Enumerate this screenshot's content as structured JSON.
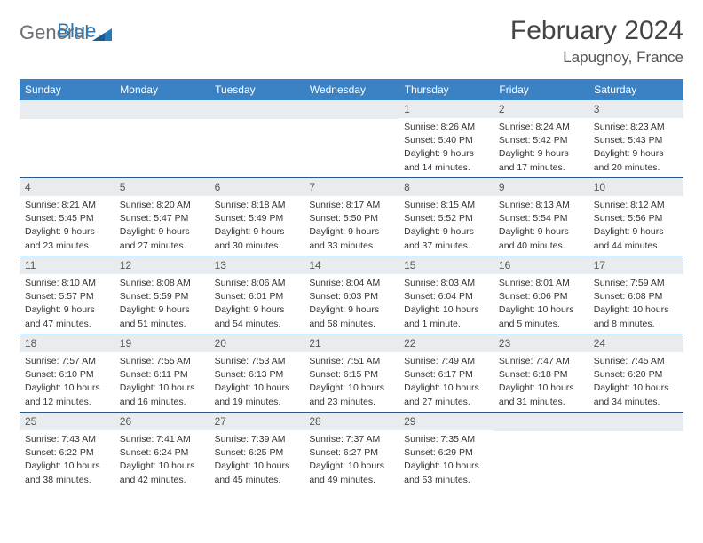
{
  "logo": {
    "text1": "General",
    "text2": "Blue"
  },
  "header": {
    "title": "February 2024",
    "location": "Lapugnoy, France"
  },
  "colors": {
    "header_bg": "#3b82c4",
    "header_text": "#ffffff",
    "daynum_bg": "#e9ecef",
    "row_border": "#2a5a8a",
    "logo_gray": "#6b6f73",
    "logo_blue": "#2a7ab8"
  },
  "weekdays": [
    "Sunday",
    "Monday",
    "Tuesday",
    "Wednesday",
    "Thursday",
    "Friday",
    "Saturday"
  ],
  "weeks": [
    [
      null,
      null,
      null,
      null,
      {
        "day": "1",
        "sunrise": "8:26 AM",
        "sunset": "5:40 PM",
        "daylight": "9 hours and 14 minutes."
      },
      {
        "day": "2",
        "sunrise": "8:24 AM",
        "sunset": "5:42 PM",
        "daylight": "9 hours and 17 minutes."
      },
      {
        "day": "3",
        "sunrise": "8:23 AM",
        "sunset": "5:43 PM",
        "daylight": "9 hours and 20 minutes."
      }
    ],
    [
      {
        "day": "4",
        "sunrise": "8:21 AM",
        "sunset": "5:45 PM",
        "daylight": "9 hours and 23 minutes."
      },
      {
        "day": "5",
        "sunrise": "8:20 AM",
        "sunset": "5:47 PM",
        "daylight": "9 hours and 27 minutes."
      },
      {
        "day": "6",
        "sunrise": "8:18 AM",
        "sunset": "5:49 PM",
        "daylight": "9 hours and 30 minutes."
      },
      {
        "day": "7",
        "sunrise": "8:17 AM",
        "sunset": "5:50 PM",
        "daylight": "9 hours and 33 minutes."
      },
      {
        "day": "8",
        "sunrise": "8:15 AM",
        "sunset": "5:52 PM",
        "daylight": "9 hours and 37 minutes."
      },
      {
        "day": "9",
        "sunrise": "8:13 AM",
        "sunset": "5:54 PM",
        "daylight": "9 hours and 40 minutes."
      },
      {
        "day": "10",
        "sunrise": "8:12 AM",
        "sunset": "5:56 PM",
        "daylight": "9 hours and 44 minutes."
      }
    ],
    [
      {
        "day": "11",
        "sunrise": "8:10 AM",
        "sunset": "5:57 PM",
        "daylight": "9 hours and 47 minutes."
      },
      {
        "day": "12",
        "sunrise": "8:08 AM",
        "sunset": "5:59 PM",
        "daylight": "9 hours and 51 minutes."
      },
      {
        "day": "13",
        "sunrise": "8:06 AM",
        "sunset": "6:01 PM",
        "daylight": "9 hours and 54 minutes."
      },
      {
        "day": "14",
        "sunrise": "8:04 AM",
        "sunset": "6:03 PM",
        "daylight": "9 hours and 58 minutes."
      },
      {
        "day": "15",
        "sunrise": "8:03 AM",
        "sunset": "6:04 PM",
        "daylight": "10 hours and 1 minute."
      },
      {
        "day": "16",
        "sunrise": "8:01 AM",
        "sunset": "6:06 PM",
        "daylight": "10 hours and 5 minutes."
      },
      {
        "day": "17",
        "sunrise": "7:59 AM",
        "sunset": "6:08 PM",
        "daylight": "10 hours and 8 minutes."
      }
    ],
    [
      {
        "day": "18",
        "sunrise": "7:57 AM",
        "sunset": "6:10 PM",
        "daylight": "10 hours and 12 minutes."
      },
      {
        "day": "19",
        "sunrise": "7:55 AM",
        "sunset": "6:11 PM",
        "daylight": "10 hours and 16 minutes."
      },
      {
        "day": "20",
        "sunrise": "7:53 AM",
        "sunset": "6:13 PM",
        "daylight": "10 hours and 19 minutes."
      },
      {
        "day": "21",
        "sunrise": "7:51 AM",
        "sunset": "6:15 PM",
        "daylight": "10 hours and 23 minutes."
      },
      {
        "day": "22",
        "sunrise": "7:49 AM",
        "sunset": "6:17 PM",
        "daylight": "10 hours and 27 minutes."
      },
      {
        "day": "23",
        "sunrise": "7:47 AM",
        "sunset": "6:18 PM",
        "daylight": "10 hours and 31 minutes."
      },
      {
        "day": "24",
        "sunrise": "7:45 AM",
        "sunset": "6:20 PM",
        "daylight": "10 hours and 34 minutes."
      }
    ],
    [
      {
        "day": "25",
        "sunrise": "7:43 AM",
        "sunset": "6:22 PM",
        "daylight": "10 hours and 38 minutes."
      },
      {
        "day": "26",
        "sunrise": "7:41 AM",
        "sunset": "6:24 PM",
        "daylight": "10 hours and 42 minutes."
      },
      {
        "day": "27",
        "sunrise": "7:39 AM",
        "sunset": "6:25 PM",
        "daylight": "10 hours and 45 minutes."
      },
      {
        "day": "28",
        "sunrise": "7:37 AM",
        "sunset": "6:27 PM",
        "daylight": "10 hours and 49 minutes."
      },
      {
        "day": "29",
        "sunrise": "7:35 AM",
        "sunset": "6:29 PM",
        "daylight": "10 hours and 53 minutes."
      },
      null,
      null
    ]
  ],
  "labels": {
    "sunrise": "Sunrise:",
    "sunset": "Sunset:",
    "daylight": "Daylight:"
  }
}
